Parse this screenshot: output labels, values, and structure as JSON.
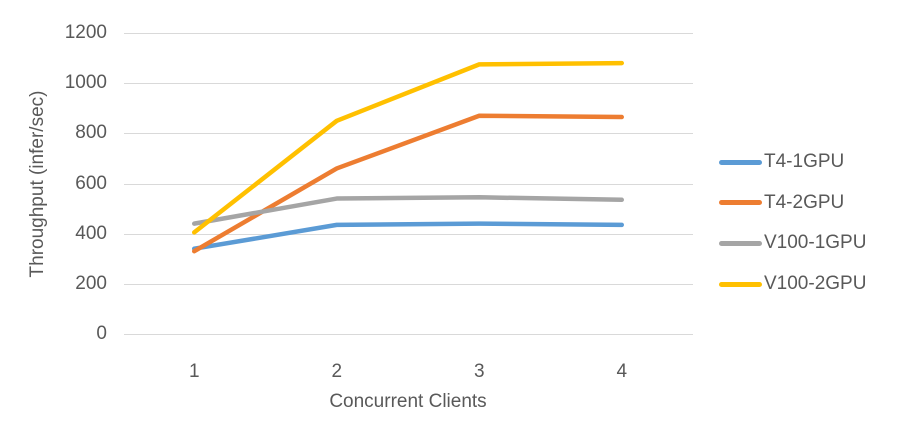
{
  "chart_data": {
    "type": "line",
    "title": "",
    "xlabel": "Concurrent Clients",
    "ylabel": "Throughput (infer/sec)",
    "x_categories": [
      "1",
      "2",
      "3",
      "4"
    ],
    "y_ticks": [
      0,
      200,
      400,
      600,
      800,
      1000,
      1200
    ],
    "ylim": [
      0,
      1200
    ],
    "grid": "horizontal",
    "legend_position": "right",
    "series": [
      {
        "name": "T4-1GPU",
        "color": "#5B9BD5",
        "values": [
          340,
          435,
          440,
          435
        ]
      },
      {
        "name": "T4-2GPU",
        "color": "#ED7D31",
        "values": [
          330,
          660,
          870,
          865
        ]
      },
      {
        "name": "V100-1GPU",
        "color": "#A5A5A5",
        "values": [
          440,
          540,
          545,
          535
        ]
      },
      {
        "name": "V100-2GPU",
        "color": "#FFC000",
        "values": [
          405,
          850,
          1075,
          1080
        ]
      }
    ],
    "colors": {
      "gridline": "#D9D9D9",
      "text": "#595959",
      "background": "#FFFFFF"
    }
  }
}
